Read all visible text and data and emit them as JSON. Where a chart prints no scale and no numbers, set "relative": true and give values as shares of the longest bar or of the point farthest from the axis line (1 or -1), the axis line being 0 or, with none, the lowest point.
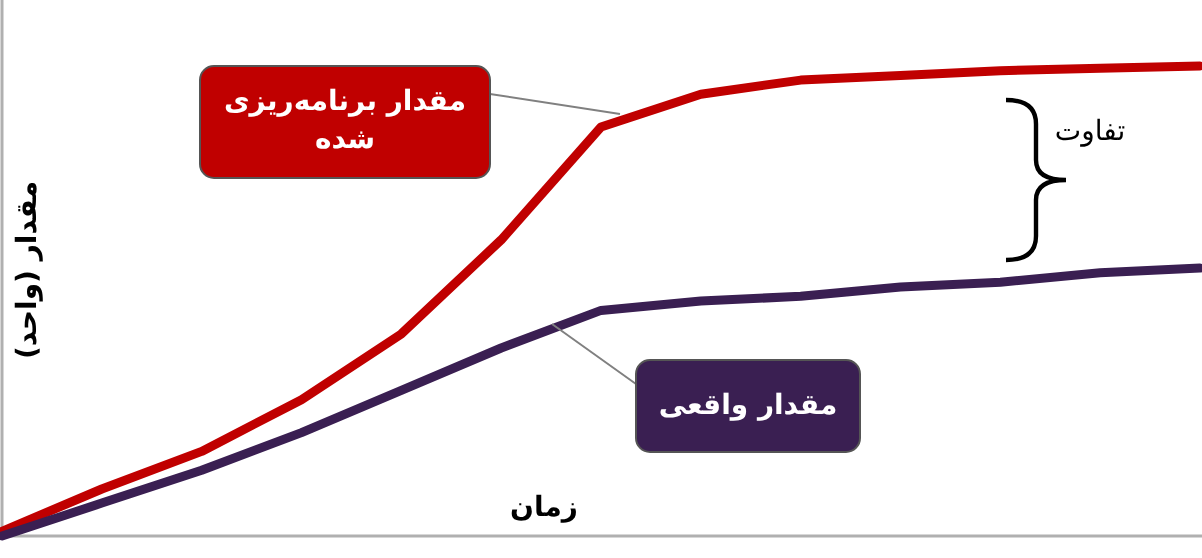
{
  "chart_data": {
    "type": "line",
    "relative": true,
    "xlabel": "زمان",
    "ylabel": "مقدار (واحد)",
    "categories": [
      null,
      null,
      null,
      null,
      null,
      null,
      null,
      null,
      null,
      null,
      null,
      null,
      null
    ],
    "series": [
      {
        "name": "مقدار برنامه‌ریزی شده",
        "color": "#c00000",
        "values": [
          0.01,
          0.1,
          0.18,
          0.29,
          0.43,
          0.63,
          0.87,
          0.94,
          0.97,
          0.98,
          0.99,
          0.995,
          1.0
        ]
      },
      {
        "name": "مقدار واقعی",
        "color": "#3a1f52",
        "values": [
          0,
          0.07,
          0.14,
          0.22,
          0.31,
          0.4,
          0.48,
          0.5,
          0.51,
          0.53,
          0.54,
          0.56,
          0.57
        ]
      }
    ],
    "annotations": [
      "تفاوت"
    ]
  }
}
